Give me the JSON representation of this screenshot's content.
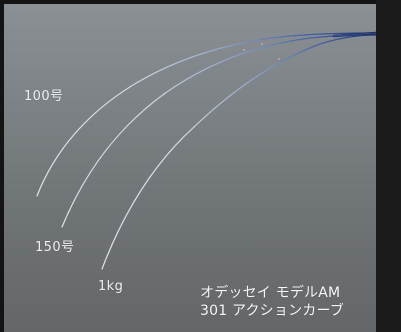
{
  "figure": {
    "curve_labels": [
      {
        "label": "100号"
      },
      {
        "label": "150号"
      },
      {
        "label": "1kg"
      }
    ],
    "caption": {
      "line1": "オデッセイ モデルAM",
      "line2": "301 アクションカーブ"
    },
    "colors": {
      "background_top": "#8b9094",
      "background_bottom": "#63676a",
      "curve_light": "#e7ebef",
      "curve_dark": "#233a7a",
      "frame_dark": "#141414"
    }
  }
}
